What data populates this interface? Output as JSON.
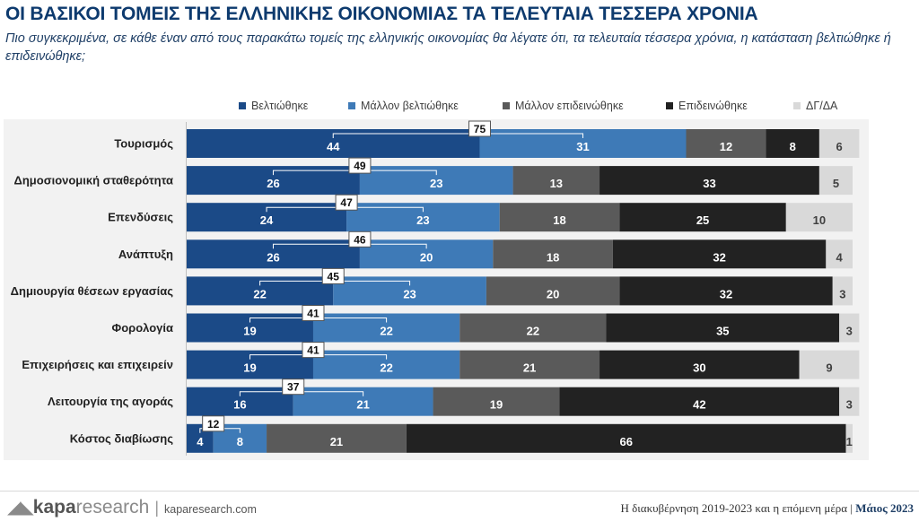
{
  "header": {
    "title": "ΟΙ ΒΑΣΙΚΟΙ ΤΟΜΕΙΣ ΤΗΣ ΕΛΛΗΝΙΚΗΣ ΟΙΚΟΝΟΜΙΑΣ ΤΑ ΤΕΛΕΥΤΑΙΑ ΤΕΣΣΕΡΑ ΧΡΟΝΙΑ",
    "subtitle": "Πιο συγκεκριμένα, σε κάθε έναν από τους παρακάτω τομείς της ελληνικής οικονομίας θα λέγατε ότι, τα τελευταία τέσσερα χρόνια, η κατάσταση βελτιώθηκε ή επιδεινώθηκε;"
  },
  "colors": {
    "improved": "#1b4a87",
    "rather_improved": "#3e7ab7",
    "rather_worsened": "#5a5a5a",
    "worsened": "#222222",
    "dk_na": "#d9d9d9",
    "total_box_border": "#555555"
  },
  "chart_data": {
    "type": "bar",
    "orientation": "horizontal",
    "stacked": true,
    "legend_position": "top",
    "categories": [
      "Τουρισμός",
      "Δημοσιονομική σταθερότητα",
      "Επενδύσεις",
      "Ανάπτυξη",
      "Δημιουργία θέσεων εργασίας",
      "Φορολογία",
      "Επιχειρήσεις και επιχειρείν",
      "Λειτουργία της αγοράς",
      "Κόστος διαβίωσης"
    ],
    "series": [
      {
        "name": "Βελτιώθηκε",
        "color_key": "improved",
        "label_color": "#ffffff",
        "values": [
          44,
          26,
          24,
          26,
          22,
          19,
          19,
          16,
          4
        ]
      },
      {
        "name": "Μάλλον βελτιώθηκε",
        "color_key": "rather_improved",
        "label_color": "#ffffff",
        "values": [
          31,
          23,
          23,
          20,
          23,
          22,
          22,
          21,
          8
        ]
      },
      {
        "name": "Μάλλον επιδεινώθηκε",
        "color_key": "rather_worsened",
        "label_color": "#ffffff",
        "values": [
          12,
          13,
          18,
          18,
          20,
          22,
          21,
          19,
          21
        ]
      },
      {
        "name": "Επιδεινώθηκε",
        "color_key": "worsened",
        "label_color": "#ffffff",
        "values": [
          8,
          33,
          25,
          32,
          32,
          35,
          30,
          42,
          66
        ]
      },
      {
        "name": "ΔΓ/ΔΑ",
        "color_key": "dk_na",
        "label_color": "#404040",
        "values": [
          6,
          5,
          10,
          4,
          3,
          3,
          9,
          3,
          1
        ]
      }
    ],
    "improved_totals": [
      75,
      49,
      47,
      46,
      45,
      41,
      41,
      37,
      12
    ],
    "xlim": [
      0,
      100
    ]
  },
  "footer": {
    "brand_mark": "◢◣",
    "brand_kapa": "kapa",
    "brand_research": "research",
    "separator": "|",
    "url": "kaparesearch.com",
    "report": "Η διακυβέρνηση 2019-2023 και η επόμενη μέρα",
    "date_separator": "|",
    "date": "Μάιος 2023"
  }
}
